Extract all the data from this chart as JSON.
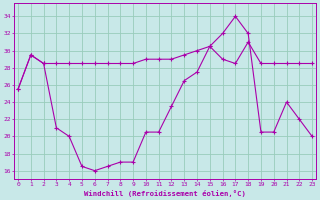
{
  "background_color": "#c8e8e8",
  "line_color": "#aa00aa",
  "grid_color": "#99ccbb",
  "xlabel": "Windchill (Refroidissement éolien,°C)",
  "x_ticks": [
    0,
    1,
    2,
    3,
    4,
    5,
    6,
    7,
    8,
    9,
    10,
    11,
    12,
    13,
    14,
    15,
    16,
    17,
    18,
    19,
    20,
    21,
    22,
    23
  ],
  "y_ticks": [
    16,
    18,
    20,
    22,
    24,
    26,
    28,
    30,
    32,
    34
  ],
  "ylim": [
    15.0,
    35.5
  ],
  "xlim": [
    -0.3,
    23.3
  ],
  "line1_y": [
    25.5,
    29.5,
    28.5,
    28.5,
    28.5,
    28.5,
    28.5,
    28.5,
    28.5,
    28.5,
    29.0,
    29.0,
    29.0,
    29.5,
    30.0,
    30.5,
    29.0,
    28.5,
    31.0,
    28.5,
    28.5,
    28.5,
    28.5,
    28.5
  ],
  "line2_y": [
    25.5,
    29.5,
    28.5,
    21.0,
    20.0,
    16.5,
    16.0,
    16.5,
    17.0,
    17.0,
    20.5,
    20.5,
    23.5,
    26.5,
    27.5,
    30.5,
    32.0,
    34.0,
    32.0,
    20.5,
    20.5,
    24.0,
    22.0,
    20.0
  ]
}
